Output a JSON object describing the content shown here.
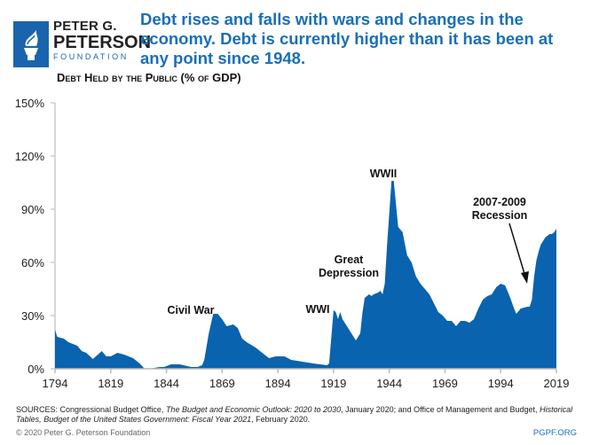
{
  "logo": {
    "line1": "PETER G.",
    "line2": "PETERSON",
    "line3": "FOUNDATION",
    "color": "#1a64ad"
  },
  "headline": "Debt rises and falls with wars and changes in the economy. Debt is currently higher than it has been at any point since 1948.",
  "chart_data": {
    "type": "area",
    "title": "Debt Held by the Public (% of GDP)",
    "xlabel": "",
    "ylabel": "",
    "xlim": [
      1794,
      2019
    ],
    "ylim": [
      0,
      150
    ],
    "x_ticks": [
      1794,
      1819,
      1844,
      1869,
      1894,
      1919,
      1944,
      1969,
      1994,
      2019
    ],
    "y_ticks": [
      0,
      30,
      60,
      90,
      120,
      150
    ],
    "y_tick_labels": [
      "0%",
      "30%",
      "60%",
      "90%",
      "120%",
      "150%"
    ],
    "grid": false,
    "color": "#0a63ae",
    "annotations": [
      {
        "text": "Civil War",
        "year": 1865
      },
      {
        "text": "WWI",
        "year": 1917
      },
      {
        "text": "Great Depression",
        "year": 1932
      },
      {
        "text": "WWII",
        "year": 1945
      },
      {
        "text": "2007-2009 Recession",
        "year": 2008,
        "arrow": true
      }
    ],
    "x": [
      1794,
      1795,
      1798,
      1800,
      1802,
      1804,
      1806,
      1808,
      1811,
      1815,
      1817,
      1819,
      1822,
      1825,
      1829,
      1832,
      1834,
      1837,
      1841,
      1843,
      1846,
      1850,
      1855,
      1858,
      1860,
      1861,
      1863,
      1865,
      1867,
      1869,
      1871,
      1874,
      1876,
      1878,
      1880,
      1884,
      1888,
      1890,
      1893,
      1897,
      1900,
      1905,
      1910,
      1916,
      1917,
      1918,
      1919,
      1920,
      1921,
      1922,
      1923,
      1925,
      1928,
      1929,
      1931,
      1932,
      1933,
      1935,
      1936,
      1937,
      1939,
      1940,
      1941,
      1942,
      1943,
      1945,
      1946,
      1947,
      1948,
      1950,
      1952,
      1954,
      1956,
      1958,
      1960,
      1962,
      1964,
      1966,
      1968,
      1970,
      1972,
      1974,
      1976,
      1978,
      1980,
      1982,
      1984,
      1986,
      1988,
      1990,
      1992,
      1994,
      1996,
      1998,
      2000,
      2001,
      2003,
      2006,
      2007,
      2008,
      2009,
      2010,
      2011,
      2012,
      2014,
      2016,
      2017,
      2018,
      2019
    ],
    "values": [
      22,
      18,
      17,
      15,
      14,
      13,
      10,
      9,
      5.5,
      10,
      7,
      7,
      9,
      8,
      6,
      3,
      0.3,
      0.2,
      1,
      1,
      2.5,
      2.5,
      1,
      1,
      2,
      5,
      20,
      31,
      31,
      28,
      24,
      25,
      23,
      17,
      15,
      12,
      8,
      6,
      7,
      7,
      5,
      4,
      3,
      2,
      3,
      18,
      33,
      32,
      28,
      32,
      28,
      24,
      18,
      16,
      20,
      32,
      40,
      42,
      41,
      42,
      43,
      44,
      42,
      48,
      70,
      106,
      106,
      93,
      80,
      77,
      64,
      60,
      52,
      48,
      45,
      42,
      37,
      32,
      30,
      27,
      27,
      24,
      27,
      27,
      26,
      28,
      34,
      39,
      41,
      42,
      46,
      48,
      47,
      41,
      34,
      31,
      34,
      35,
      35,
      39,
      52,
      61,
      66,
      70,
      74,
      76,
      76,
      77,
      79
    ]
  },
  "sources_label": "SOURCES:",
  "sources_parts": [
    "Congressional Budget Office, ",
    "The Budget and Economic Outlook: 2020 to 2030",
    ", January 2020; and Office of Management and Budget, ",
    "Historical Tables, Budget of the United States Government: Fiscal Year 2021",
    ", February 2020."
  ],
  "copyright": "© 2020 Peter G. Peterson Foundation",
  "site": "PGPF.ORG"
}
